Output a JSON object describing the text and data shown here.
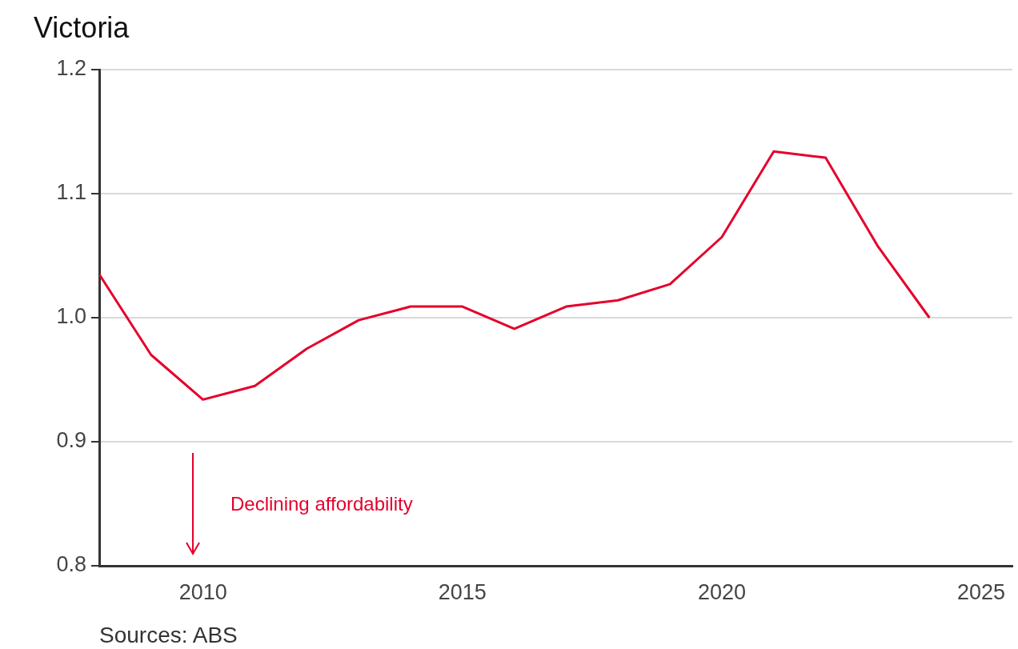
{
  "chart_data": {
    "type": "line",
    "title": "Victoria",
    "x": [
      2008,
      2009,
      2010,
      2011,
      2012,
      2013,
      2014,
      2015,
      2016,
      2017,
      2018,
      2019,
      2020,
      2021,
      2022,
      2023,
      2024
    ],
    "series": [
      {
        "color": "#e4002b",
        "values": [
          1.035,
          0.97,
          0.934,
          0.945,
          0.975,
          0.998,
          1.009,
          1.009,
          0.991,
          1.009,
          1.014,
          1.027,
          1.065,
          1.134,
          1.129,
          1.058,
          1.0
        ]
      }
    ],
    "xlim": [
      2008,
      2025.6
    ],
    "xticks": [
      2010,
      2015,
      2020,
      2025
    ],
    "ylim": [
      0.8,
      1.2
    ],
    "yticks": [
      {
        "value": 0.8,
        "label": "0.8"
      },
      {
        "value": 0.9,
        "label": "0.9"
      },
      {
        "value": 1.0,
        "label": "1.0"
      },
      {
        "value": 1.1,
        "label": "1.1"
      },
      {
        "value": 1.2,
        "label": "1.2"
      }
    ],
    "grid": "y",
    "legend": false,
    "marker": "none",
    "line_style": "solid",
    "annotations": [
      "Declining affordability",
      "Sources: ABS"
    ]
  }
}
